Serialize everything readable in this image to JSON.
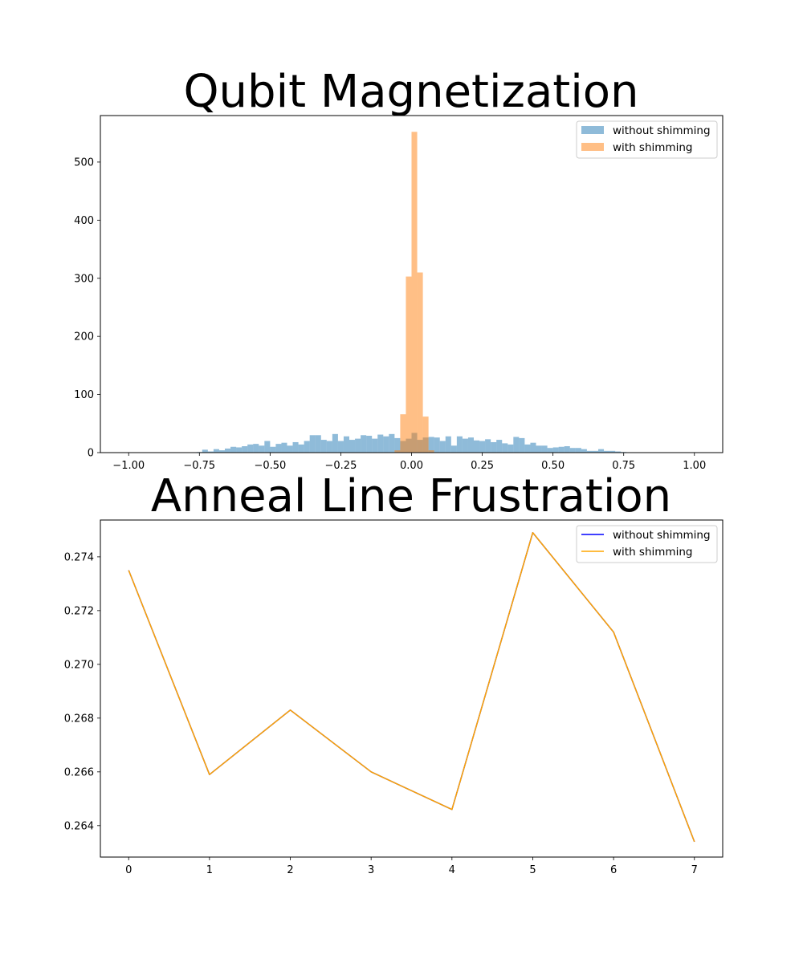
{
  "colors": {
    "without": "#1f77b4",
    "with": "#ff7f0e",
    "line_without": "#0000ff",
    "line_with": "#ffa500"
  },
  "chart_data": [
    {
      "type": "bar",
      "title": "Qubit Magnetization",
      "xlabel": "",
      "ylabel": "",
      "xlim": [
        -1.1,
        1.1
      ],
      "ylim": [
        0,
        580
      ],
      "xticks": [
        -1.0,
        -0.75,
        -0.5,
        -0.25,
        0.0,
        0.25,
        0.5,
        0.75,
        1.0
      ],
      "xtick_labels": [
        "−1.00",
        "−0.75",
        "−0.50",
        "−0.25",
        "0.00",
        "0.25",
        "0.50",
        "0.75",
        "1.00"
      ],
      "yticks": [
        0,
        100,
        200,
        300,
        400,
        500
      ],
      "ytick_labels": [
        "0",
        "100",
        "200",
        "300",
        "400",
        "500"
      ],
      "legend_position": "top-right",
      "bin_range": [
        -1.0,
        1.0
      ],
      "bin_width": 0.02,
      "series": [
        {
          "name": "without shimming",
          "bin_start": -0.76,
          "values": [
            1,
            5,
            2,
            6,
            4,
            7,
            10,
            9,
            11,
            14,
            15,
            12,
            20,
            10,
            15,
            17,
            12,
            18,
            14,
            20,
            30,
            30,
            22,
            20,
            32,
            20,
            28,
            22,
            24,
            30,
            29,
            24,
            31,
            28,
            32,
            25,
            20,
            24,
            34,
            22,
            26,
            27,
            26,
            20,
            28,
            12,
            28,
            24,
            26,
            21,
            20,
            23,
            18,
            22,
            16,
            14,
            27,
            25,
            14,
            17,
            12,
            12,
            8,
            9,
            10,
            11,
            8,
            8,
            6,
            3,
            3,
            6,
            3,
            3,
            2,
            1
          ]
        },
        {
          "name": "with shimming",
          "bin_start": -0.06,
          "values": [
            4,
            66,
            303,
            552,
            310,
            62,
            4
          ]
        }
      ]
    },
    {
      "type": "line",
      "title": "Anneal Line Frustration",
      "xlabel": "",
      "ylabel": "",
      "xlim": [
        -0.35,
        7.35
      ],
      "ylim": [
        0.26283,
        0.27537
      ],
      "xticks": [
        0,
        1,
        2,
        3,
        4,
        5,
        6,
        7
      ],
      "xtick_labels": [
        "0",
        "1",
        "2",
        "3",
        "4",
        "5",
        "6",
        "7"
      ],
      "yticks": [
        0.264,
        0.266,
        0.268,
        0.27,
        0.272,
        0.274
      ],
      "ytick_labels": [
        "0.264",
        "0.266",
        "0.268",
        "0.270",
        "0.272",
        "0.274"
      ],
      "legend_position": "top-right",
      "x": [
        0,
        1,
        2,
        3,
        4,
        5,
        6,
        7
      ],
      "series": [
        {
          "name": "without shimming",
          "values": [
            0.2735,
            0.2659,
            0.2683,
            0.266,
            0.2646,
            0.2749,
            0.2712,
            0.2634
          ]
        },
        {
          "name": "with shimming",
          "values": [
            0.2735,
            0.2659,
            0.2683,
            0.266,
            0.2646,
            0.2749,
            0.2712,
            0.2634
          ]
        }
      ]
    }
  ]
}
